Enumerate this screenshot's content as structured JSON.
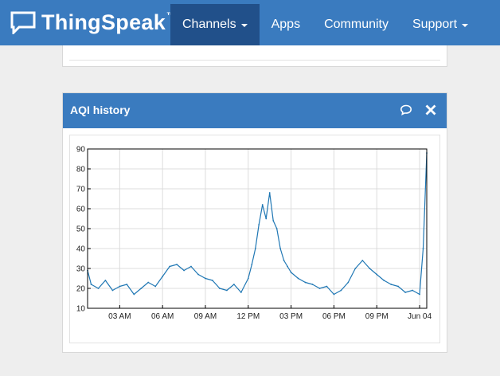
{
  "navbar": {
    "brand": "ThingSpeak",
    "trademark": "™",
    "items": [
      {
        "label": "Channels",
        "active": true,
        "has_caret": true
      },
      {
        "label": "Apps",
        "active": false,
        "has_caret": false
      },
      {
        "label": "Community",
        "active": false,
        "has_caret": false
      },
      {
        "label": "Support",
        "active": false,
        "has_caret": true
      }
    ]
  },
  "widget": {
    "title": "AQI history",
    "icons": [
      "comment-icon",
      "close-icon"
    ]
  },
  "colors": {
    "navbar": "#3a7bbf",
    "navbar_active": "#21508a",
    "line": "#1f77b4"
  },
  "chart_data": {
    "type": "line",
    "title": "",
    "xlabel": "",
    "ylabel": "",
    "ylim": [
      10,
      90
    ],
    "yticks": [
      10,
      20,
      30,
      40,
      50,
      60,
      70,
      80,
      90
    ],
    "xlim": [
      "Jun 03 00:45",
      "Jun 04 00:30"
    ],
    "xticks": [
      {
        "t": "Jun 03 03:00",
        "label": "03 AM"
      },
      {
        "t": "Jun 03 06:00",
        "label": "06 AM"
      },
      {
        "t": "Jun 03 09:00",
        "label": "09 AM"
      },
      {
        "t": "Jun 03 12:00",
        "label": "12 PM"
      },
      {
        "t": "Jun 03 15:00",
        "label": "03 PM"
      },
      {
        "t": "Jun 03 18:00",
        "label": "06 PM"
      },
      {
        "t": "Jun 03 21:00",
        "label": "09 PM"
      },
      {
        "t": "Jun 04 00:00",
        "label": "Jun 04"
      }
    ],
    "series": [
      {
        "color": "#1f77b4",
        "x": [
          "Jun 03 00:45",
          "Jun 03 01:00",
          "Jun 03 01:30",
          "Jun 03 02:00",
          "Jun 03 02:30",
          "Jun 03 03:00",
          "Jun 03 03:30",
          "Jun 03 04:00",
          "Jun 03 04:30",
          "Jun 03 05:00",
          "Jun 03 05:30",
          "Jun 03 06:00",
          "Jun 03 06:30",
          "Jun 03 07:00",
          "Jun 03 07:30",
          "Jun 03 08:00",
          "Jun 03 08:30",
          "Jun 03 09:00",
          "Jun 03 09:30",
          "Jun 03 10:00",
          "Jun 03 10:30",
          "Jun 03 11:00",
          "Jun 03 11:30",
          "Jun 03 12:00",
          "Jun 03 12:15",
          "Jun 03 12:30",
          "Jun 03 12:45",
          "Jun 03 13:00",
          "Jun 03 13:15",
          "Jun 03 13:30",
          "Jun 03 13:45",
          "Jun 03 14:00",
          "Jun 03 14:15",
          "Jun 03 14:30",
          "Jun 03 14:45",
          "Jun 03 15:00",
          "Jun 03 15:30",
          "Jun 03 16:00",
          "Jun 03 16:30",
          "Jun 03 17:00",
          "Jun 03 17:30",
          "Jun 03 18:00",
          "Jun 03 18:30",
          "Jun 03 19:00",
          "Jun 03 19:30",
          "Jun 03 20:00",
          "Jun 03 20:30",
          "Jun 03 21:00",
          "Jun 03 21:30",
          "Jun 03 22:00",
          "Jun 03 22:30",
          "Jun 03 23:00",
          "Jun 03 23:30",
          "Jun 04 00:00",
          "Jun 04 00:15",
          "Jun 04 00:30"
        ],
        "values": [
          29,
          22,
          20,
          24,
          19,
          21,
          22,
          17,
          20,
          23,
          21,
          26,
          31,
          32,
          29,
          31,
          27,
          25,
          24,
          20,
          19,
          22,
          18,
          25,
          32,
          40,
          52,
          62,
          55,
          68,
          54,
          50,
          40,
          34,
          31,
          28,
          25,
          23,
          22,
          20,
          21,
          17,
          19,
          23,
          30,
          34,
          30,
          27,
          24,
          22,
          21,
          18,
          19,
          17,
          40,
          88
        ]
      }
    ]
  }
}
